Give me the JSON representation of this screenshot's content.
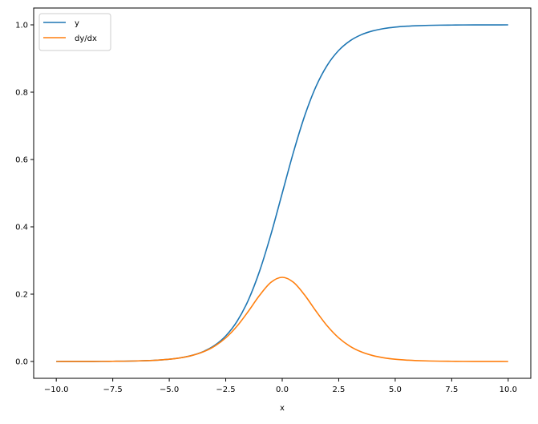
{
  "chart_data": {
    "type": "line",
    "title": "",
    "xlabel": "x",
    "ylabel": "",
    "xlim": [
      -11,
      11
    ],
    "ylim": [
      -0.05,
      1.05
    ],
    "grid": false,
    "legend_position": "top-left",
    "x_ticks": [
      -10.0,
      -7.5,
      -5.0,
      -2.5,
      0.0,
      2.5,
      5.0,
      7.5,
      10.0
    ],
    "x_tick_labels": [
      "−10.0",
      "−7.5",
      "−5.0",
      "−2.5",
      "0.0",
      "2.5",
      "5.0",
      "7.5",
      "10.0"
    ],
    "y_ticks": [
      0.0,
      0.2,
      0.4,
      0.6,
      0.8,
      1.0
    ],
    "y_tick_labels": [
      "0.0",
      "0.2",
      "0.4",
      "0.6",
      "0.8",
      "1.0"
    ],
    "x": [
      -10,
      -9.5,
      -9,
      -8.5,
      -8,
      -7.5,
      -7,
      -6.5,
      -6,
      -5.5,
      -5,
      -4.5,
      -4,
      -3.5,
      -3,
      -2.5,
      -2,
      -1.5,
      -1,
      -0.5,
      0,
      0.5,
      1,
      1.5,
      2,
      2.5,
      3,
      3.5,
      4,
      4.5,
      5,
      5.5,
      6,
      6.5,
      7,
      7.5,
      8,
      8.5,
      9,
      9.5,
      10
    ],
    "series": [
      {
        "name": "y",
        "color": "#1f77b4",
        "values": [
          0.0,
          0.0001,
          0.0001,
          0.0002,
          0.0003,
          0.0006,
          0.0009,
          0.0015,
          0.0025,
          0.0041,
          0.0067,
          0.011,
          0.018,
          0.0293,
          0.0474,
          0.0759,
          0.1192,
          0.1824,
          0.2689,
          0.3775,
          0.5,
          0.6225,
          0.7311,
          0.8176,
          0.8808,
          0.9241,
          0.9526,
          0.9707,
          0.982,
          0.989,
          0.9933,
          0.9959,
          0.9975,
          0.9985,
          0.9991,
          0.9994,
          0.9997,
          0.9998,
          0.9999,
          0.9999,
          1.0
        ]
      },
      {
        "name": "dy/dx",
        "color": "#ff7f0e",
        "values": [
          0.0,
          0.0001,
          0.0001,
          0.0002,
          0.0003,
          0.0006,
          0.0009,
          0.0015,
          0.0025,
          0.0041,
          0.0066,
          0.0109,
          0.0177,
          0.0285,
          0.0452,
          0.0701,
          0.105,
          0.1491,
          0.1966,
          0.235,
          0.25,
          0.235,
          0.1966,
          0.1491,
          0.105,
          0.0701,
          0.0452,
          0.0285,
          0.0177,
          0.0109,
          0.0066,
          0.0041,
          0.0025,
          0.0015,
          0.0009,
          0.0006,
          0.0003,
          0.0002,
          0.0001,
          0.0001,
          0.0
        ]
      }
    ]
  }
}
